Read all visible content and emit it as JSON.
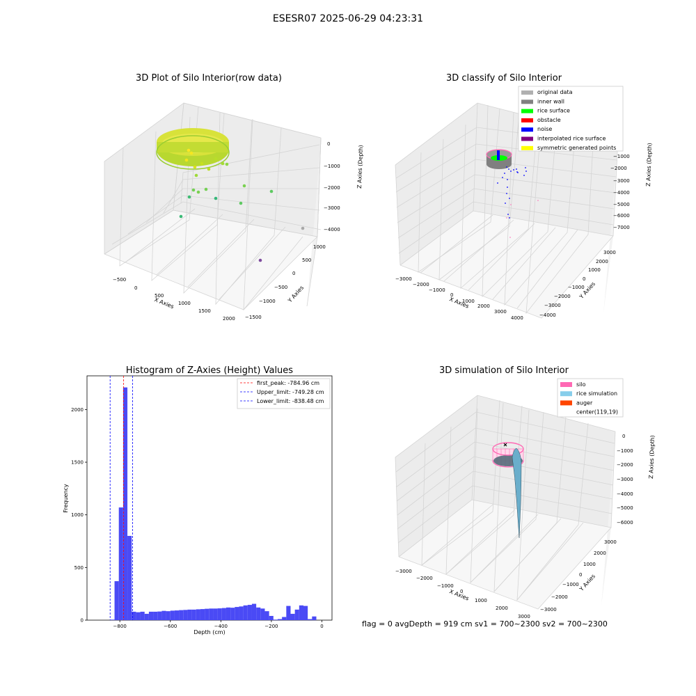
{
  "figure": {
    "suptitle": "ESESR07 2025-06-29 04:23:31",
    "status_line": "flag = 0     avgDepth = 919 cm  sv1 = 700~2300  sv2 = 700~2300"
  },
  "colors": {
    "grid": "#d4d4d4",
    "pane_back": "#ececec",
    "pane_side": "#f2f2f2",
    "pane_floor": "#f7f7f7",
    "hist_bar": "#4a4af5",
    "peak_line": "#ff0000",
    "limit_line": "#0000ff"
  },
  "chart_data": [
    {
      "type": "scatter",
      "title": "3D Plot of Silo Interior(row data)",
      "xlabel": "X Axies",
      "ylabel": "Y Axies",
      "zlabel": "Z Axies (Depth)",
      "x_ticks": [
        "−500",
        "0",
        "500",
        "1000",
        "1500",
        "2000"
      ],
      "y_ticks": [
        "1000",
        "500",
        "0",
        "−500",
        "−1000",
        "−1500"
      ],
      "z_ticks": [
        "0",
        "−1000",
        "−2000",
        "−3000",
        "−4000"
      ],
      "colormap": "viridis (by depth)",
      "grid": true
    },
    {
      "type": "scatter",
      "title": "3D classify of Silo Interior",
      "xlabel": "X Axies",
      "ylabel": "Y Axies",
      "zlabel": "Z Axies (Depth)",
      "x_ticks": [
        "−3000",
        "−2000",
        "−1000",
        "0",
        "1000",
        "2000",
        "3000",
        "4000"
      ],
      "y_ticks": [
        "3000",
        "2000",
        "1000",
        "0",
        "−1000",
        "−2000",
        "−3000",
        "−4000"
      ],
      "z_ticks": [
        "−1000",
        "−2000",
        "−3000",
        "−4000",
        "−5000",
        "−6000",
        "−7000"
      ],
      "legend_position": "top-right",
      "legend": [
        {
          "label": "original data",
          "color": "#b0b0b0"
        },
        {
          "label": "inner wall",
          "color": "#808080"
        },
        {
          "label": "rice surface",
          "color": "#00ff00"
        },
        {
          "label": "obstacle",
          "color": "#ff0000"
        },
        {
          "label": "noise",
          "color": "#0000ff"
        },
        {
          "label": "interpolated rice surface",
          "color": "#800080"
        },
        {
          "label": "symmetric generated points",
          "color": "#ffff00"
        }
      ],
      "grid": true
    },
    {
      "type": "bar",
      "title": "Histogram of Z-Axies (Height) Values",
      "xlabel": "Depth (cm)",
      "ylabel": "Frequency",
      "xlim": [
        -930,
        40
      ],
      "ylim": [
        0,
        2320
      ],
      "x_ticks": [
        -800,
        -600,
        -400,
        -200,
        0
      ],
      "x_tick_labels": [
        "−800",
        "−600",
        "−400",
        "−200",
        "0"
      ],
      "y_ticks": [
        0,
        500,
        1000,
        1500,
        2000
      ],
      "bin_width": 17,
      "bins": [
        {
          "x": -838,
          "count": 5
        },
        {
          "x": -821,
          "count": 370
        },
        {
          "x": -804,
          "count": 1070
        },
        {
          "x": -787,
          "count": 2210
        },
        {
          "x": -770,
          "count": 800
        },
        {
          "x": -753,
          "count": 80
        },
        {
          "x": -736,
          "count": 75
        },
        {
          "x": -719,
          "count": 80
        },
        {
          "x": -702,
          "count": 60
        },
        {
          "x": -685,
          "count": 80
        },
        {
          "x": -668,
          "count": 80
        },
        {
          "x": -651,
          "count": 82
        },
        {
          "x": -634,
          "count": 88
        },
        {
          "x": -617,
          "count": 85
        },
        {
          "x": -600,
          "count": 90
        },
        {
          "x": -583,
          "count": 92
        },
        {
          "x": -566,
          "count": 95
        },
        {
          "x": -549,
          "count": 97
        },
        {
          "x": -532,
          "count": 100
        },
        {
          "x": -515,
          "count": 100
        },
        {
          "x": -498,
          "count": 103
        },
        {
          "x": -481,
          "count": 105
        },
        {
          "x": -464,
          "count": 108
        },
        {
          "x": -447,
          "count": 110
        },
        {
          "x": -430,
          "count": 110
        },
        {
          "x": -413,
          "count": 112
        },
        {
          "x": -396,
          "count": 115
        },
        {
          "x": -379,
          "count": 120
        },
        {
          "x": -362,
          "count": 118
        },
        {
          "x": -345,
          "count": 125
        },
        {
          "x": -328,
          "count": 130
        },
        {
          "x": -311,
          "count": 140
        },
        {
          "x": -294,
          "count": 145
        },
        {
          "x": -277,
          "count": 155
        },
        {
          "x": -260,
          "count": 120
        },
        {
          "x": -243,
          "count": 110
        },
        {
          "x": -226,
          "count": 85
        },
        {
          "x": -209,
          "count": 40
        },
        {
          "x": -192,
          "count": 5
        },
        {
          "x": -175,
          "count": 10
        },
        {
          "x": -158,
          "count": 30
        },
        {
          "x": -141,
          "count": 135
        },
        {
          "x": -124,
          "count": 60
        },
        {
          "x": -107,
          "count": 100
        },
        {
          "x": -90,
          "count": 140
        },
        {
          "x": -73,
          "count": 135
        },
        {
          "x": -56,
          "count": 10
        },
        {
          "x": -39,
          "count": 35
        }
      ],
      "legend_position": "top-right",
      "vlines": [
        {
          "label": "first_peak: -784.96 cm",
          "x": -784.96,
          "color": "#ff0000"
        },
        {
          "label": "Upper_limit: -749.28 cm",
          "x": -749.28,
          "color": "#0000ff"
        },
        {
          "label": "Lower_limit: -838.48 cm",
          "x": -838.48,
          "color": "#0000ff"
        }
      ],
      "grid": false
    },
    {
      "type": "surface",
      "title": "3D simulation of Silo Interior",
      "xlabel": "X Axies",
      "ylabel": "Y Axies",
      "zlabel": "Z Axies (Depth)",
      "x_ticks": [
        "−3000",
        "−2000",
        "−1000",
        "0",
        "1000",
        "2000",
        "3000"
      ],
      "y_ticks": [
        "3000",
        "2000",
        "1000",
        "0",
        "−1000",
        "−2000",
        "−3000"
      ],
      "z_ticks": [
        "0",
        "−1000",
        "−2000",
        "−3000",
        "−4000",
        "−5000",
        "−6000"
      ],
      "legend_position": "top-right",
      "legend": [
        {
          "label": "silo",
          "color": "#ff69b4"
        },
        {
          "label": "rice simulation",
          "color": "#87ceeb"
        },
        {
          "label": "auger",
          "color": "#ff4500"
        },
        {
          "label": "center(119,19)",
          "color": ""
        }
      ],
      "grid": true
    }
  ]
}
